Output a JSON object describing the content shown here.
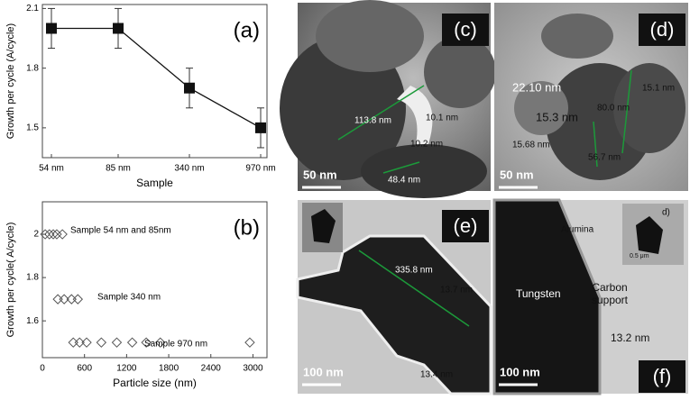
{
  "chart_data": [
    {
      "type": "line",
      "label": "(a)",
      "x_label": "Sample",
      "y_label": "Growth per cycle (A/cycle)",
      "categories": [
        "54 nm",
        "85 nm",
        "340 nm",
        "970 nm"
      ],
      "values": [
        2.0,
        2.0,
        1.7,
        1.5
      ],
      "errors": [
        0.1,
        0.1,
        0.1,
        0.1
      ],
      "color": "#111111",
      "ylim": [
        1.35,
        2.12
      ],
      "yticks": [
        1.5,
        1.8,
        2.1
      ]
    },
    {
      "type": "scatter",
      "label": "(b)",
      "x_label": "Particle size (nm)",
      "y_label": "Growth per cycle(  A/cycle)",
      "x": [
        40,
        100,
        155,
        205,
        285,
        220,
        310,
        415,
        505,
        440,
        530,
        630,
        840,
        1060,
        1280,
        1480,
        1680,
        2955
      ],
      "values": [
        2.0,
        2.0,
        2.0,
        2.0,
        2.0,
        1.7,
        1.7,
        1.7,
        1.7,
        1.5,
        1.5,
        1.5,
        1.5,
        1.5,
        1.5,
        1.5,
        1.5,
        1.5
      ],
      "color": "#555555",
      "annotations": [
        "Sample 54 nm and 85nm",
        "Sample 340 nm",
        "Sample 970 nm"
      ],
      "xlim": [
        0,
        3200
      ],
      "xticks": [
        0,
        600,
        1200,
        1800,
        2400,
        3000
      ],
      "ylim": [
        1.43,
        2.15
      ],
      "yticks": [
        1.6,
        1.8,
        2.0
      ]
    }
  ],
  "images": [
    {
      "label": "(c)",
      "scale_bar": "50 nm",
      "annotations": [
        "113.8 nm",
        "10.1 nm",
        "10.2 nm",
        "48.4 nm"
      ]
    },
    {
      "label": "(d)",
      "scale_bar": "50 nm",
      "annotations": [
        "22.10 nm",
        "80.0 nm",
        "15.1 nm",
        "15.3 nm",
        "15.68 nm",
        "56.7 nm"
      ]
    },
    {
      "label": "(e)",
      "scale_bar": "100 nm",
      "annotations": [
        "335.8 nm",
        "13.7 nm",
        "13.4 nm"
      ]
    },
    {
      "label": "(f)",
      "scale_bar": "100 nm",
      "annotations": [
        "Alumina",
        "Tungsten",
        "Carbon support",
        "13.2 nm",
        "d)",
        "0.5 μm"
      ]
    }
  ]
}
